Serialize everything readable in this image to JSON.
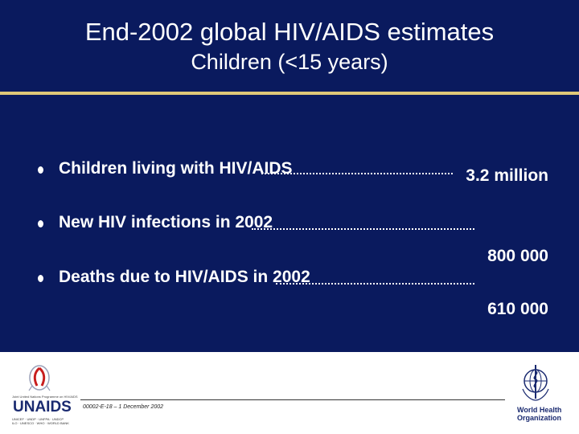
{
  "slide": {
    "title": "End-2002 global HIV/AIDS estimates",
    "subtitle": "Children (<15 years)",
    "items": [
      {
        "label": "Children living with HIV/AIDS",
        "value": "3.2 million"
      },
      {
        "label": "New HIV infections in 2002",
        "value": "800 000"
      },
      {
        "label": "Deaths due to HIV/AIDS in 2002",
        "value": "610 000"
      }
    ]
  },
  "footer": {
    "reference": "00002-E-18 – 1 December 2002",
    "unaids_tagline": "Joint United Nations Programme on HIV/AIDS",
    "unaids_name": "UNAIDS",
    "unaids_sponsors_1": "UNICEF · UNDP · UNFPA · UNDCP",
    "unaids_sponsors_2": "ILO · UNESCO · WHO · WORLD BANK",
    "who_line1": "World Health",
    "who_line2": "Organization"
  },
  "colors": {
    "background": "#0a1a5e",
    "accent_line": "#e0c878",
    "text": "#ffffff"
  }
}
